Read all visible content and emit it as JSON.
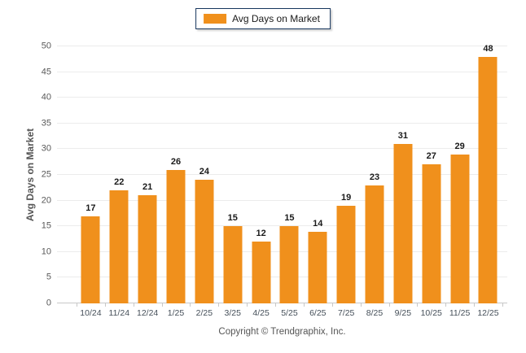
{
  "chart_data": {
    "type": "bar",
    "categories": [
      "10/24",
      "11/24",
      "12/24",
      "1/25",
      "2/25",
      "3/25",
      "4/25",
      "5/25",
      "6/25",
      "7/25",
      "8/25",
      "9/25",
      "10/25",
      "11/25",
      "12/25"
    ],
    "values": [
      17,
      22,
      21,
      26,
      24,
      15,
      12,
      15,
      14,
      19,
      23,
      31,
      27,
      29,
      48
    ],
    "title": "",
    "xlabel": "",
    "ylabel": "Avg Days on Market",
    "ylim": [
      0,
      50
    ],
    "ytick_step": 5,
    "grid": "horizontal",
    "legend": [
      "Avg Days on Market"
    ],
    "legend_position": "top-center",
    "value_labels": true,
    "bar_color": "#F0901C"
  },
  "colors": {
    "bar": "#F0901C",
    "gridline": "#ececec",
    "axis_line": "#c8c8c8",
    "legend_border": "#17365d",
    "value_label": "#1a1a1a",
    "tick_label": "#595959"
  },
  "footer": {
    "copyright": "Copyright © Trendgraphix, Inc."
  }
}
